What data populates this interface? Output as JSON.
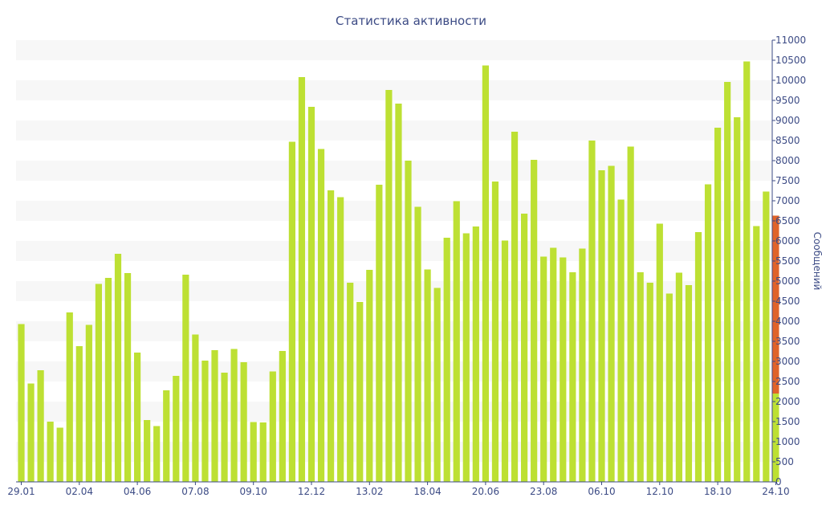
{
  "chart_data": {
    "type": "bar",
    "stacked": true,
    "title": "Статистика активности",
    "xlabel": "",
    "ylabel": "Сообщений",
    "ylim": [
      0,
      11000
    ],
    "y_ticks": [
      0,
      500,
      1000,
      1500,
      2000,
      2500,
      3000,
      3500,
      4000,
      4500,
      5000,
      5500,
      6000,
      6500,
      7000,
      7500,
      8000,
      8500,
      9000,
      9500,
      10000,
      10500,
      11000
    ],
    "y_axis_side": "right",
    "grid": "alternating horizontal bands",
    "x_tick_labels": [
      {
        "index": 0,
        "label": "29.01"
      },
      {
        "index": 6,
        "label": "02.04"
      },
      {
        "index": 12,
        "label": "04.06"
      },
      {
        "index": 18,
        "label": "07.08"
      },
      {
        "index": 24,
        "label": "09.10"
      },
      {
        "index": 30,
        "label": "12.12"
      },
      {
        "index": 36,
        "label": "13.02"
      },
      {
        "index": 42,
        "label": "18.04"
      },
      {
        "index": 48,
        "label": "20.06"
      },
      {
        "index": 54,
        "label": "23.08"
      },
      {
        "index": 60,
        "label": "06.10"
      },
      {
        "index": 66,
        "label": "12.10"
      },
      {
        "index": 72,
        "label": "18.10"
      },
      {
        "index": 78,
        "label": "24.10"
      }
    ],
    "series": [
      {
        "color": "#bde033",
        "values": [
          3930,
          2450,
          2780,
          1500,
          1350,
          4220,
          3380,
          3910,
          4930,
          5080,
          5680,
          5200,
          3220,
          1540,
          1390,
          2280,
          2640,
          5160,
          3670,
          3020,
          3280,
          2720,
          3310,
          2980,
          1490,
          1480,
          2750,
          3260,
          8470,
          10080,
          9340,
          8290,
          7260,
          7090,
          4960,
          4480,
          5280,
          7400,
          9760,
          9420,
          8000,
          6850,
          5290,
          4830,
          6080,
          6990,
          6190,
          6360,
          10370,
          7480,
          6010,
          8720,
          6680,
          8020,
          5610,
          5830,
          5590,
          5220,
          5810,
          8500,
          7760,
          7870,
          7030,
          8350,
          5220,
          4960,
          6430,
          4690,
          5210,
          4900,
          6220,
          7410,
          8820,
          9960,
          9080,
          10470,
          6370,
          7230,
          2200
        ]
      },
      {
        "color": "#e0632a",
        "values": [
          0,
          0,
          0,
          0,
          0,
          0,
          0,
          0,
          0,
          0,
          0,
          0,
          0,
          0,
          0,
          0,
          0,
          0,
          0,
          0,
          0,
          0,
          0,
          0,
          0,
          0,
          0,
          0,
          0,
          0,
          0,
          0,
          0,
          0,
          0,
          0,
          0,
          0,
          0,
          0,
          0,
          0,
          0,
          0,
          0,
          0,
          0,
          0,
          0,
          0,
          0,
          0,
          0,
          0,
          0,
          0,
          0,
          0,
          0,
          0,
          0,
          0,
          0,
          0,
          0,
          0,
          0,
          0,
          0,
          0,
          0,
          0,
          0,
          0,
          0,
          0,
          0,
          0,
          4430
        ]
      }
    ]
  }
}
